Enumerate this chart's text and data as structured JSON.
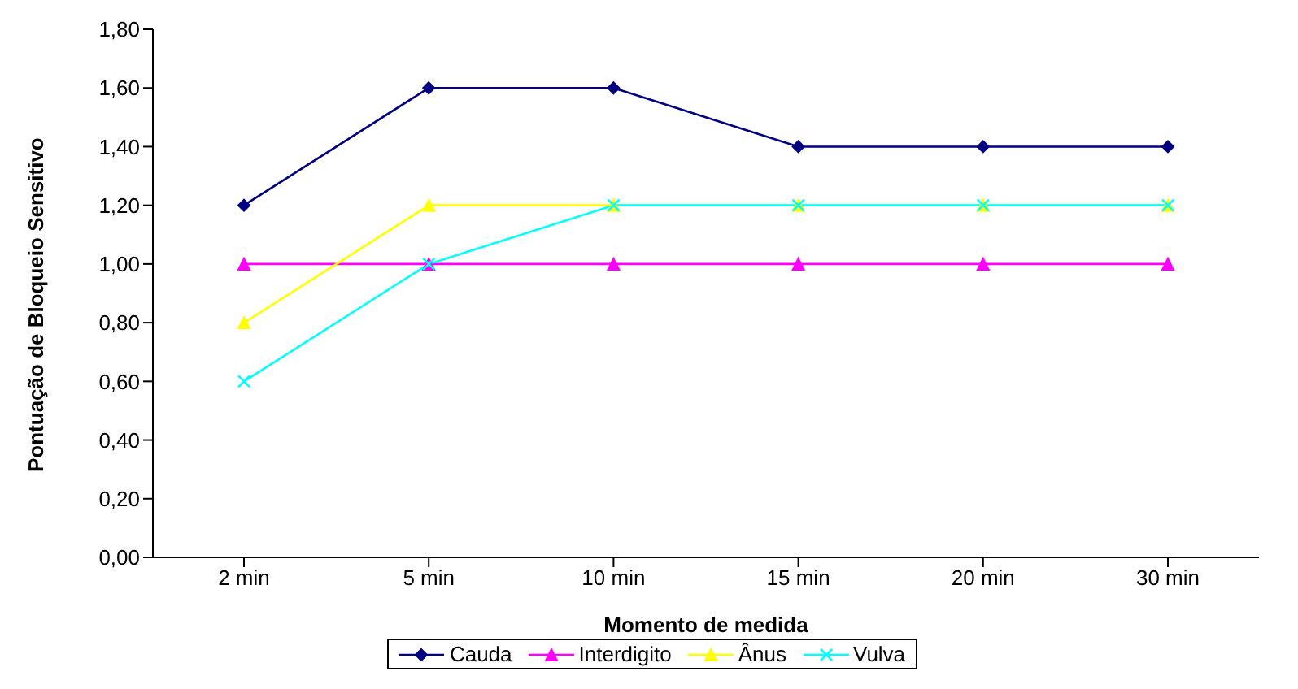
{
  "chart_data": {
    "type": "line",
    "xlabel": "Momento de medida",
    "ylabel": "Pontuação de Bloqueio Sensitivo",
    "categories": [
      "2 min",
      "5 min",
      "10 min",
      "15 min",
      "20 min",
      "30 min"
    ],
    "series": [
      {
        "name": "Cauda",
        "color": "#000080",
        "marker": "diamond",
        "values": [
          1.2,
          1.6,
          1.6,
          1.4,
          1.4,
          1.4
        ]
      },
      {
        "name": "Interdigito",
        "color": "#ff00ff",
        "marker": "triangle",
        "values": [
          1.0,
          1.0,
          1.0,
          1.0,
          1.0,
          1.0
        ]
      },
      {
        "name": "Ânus",
        "color": "#ffff00",
        "marker": "triangle",
        "values": [
          0.8,
          1.2,
          1.2,
          1.2,
          1.2,
          1.2
        ]
      },
      {
        "name": "Vulva",
        "color": "#00ffff",
        "marker": "cross",
        "values": [
          0.6,
          1.0,
          1.2,
          1.2,
          1.2,
          1.2
        ]
      }
    ],
    "ylim": [
      0,
      1.8
    ],
    "yticks": [
      {
        "value": 0,
        "label": "0,00"
      },
      {
        "value": 0.2,
        "label": "0,20"
      },
      {
        "value": 0.4,
        "label": "0,40"
      },
      {
        "value": 0.6,
        "label": "0,60"
      },
      {
        "value": 0.8,
        "label": "0,80"
      },
      {
        "value": 1.0,
        "label": "1,00"
      },
      {
        "value": 1.2,
        "label": "1,20"
      },
      {
        "value": 1.4,
        "label": "1,40"
      },
      {
        "value": 1.6,
        "label": "1,60"
      },
      {
        "value": 1.8,
        "label": "1,80"
      }
    ],
    "legend": "bottom",
    "line_style": "solid"
  }
}
